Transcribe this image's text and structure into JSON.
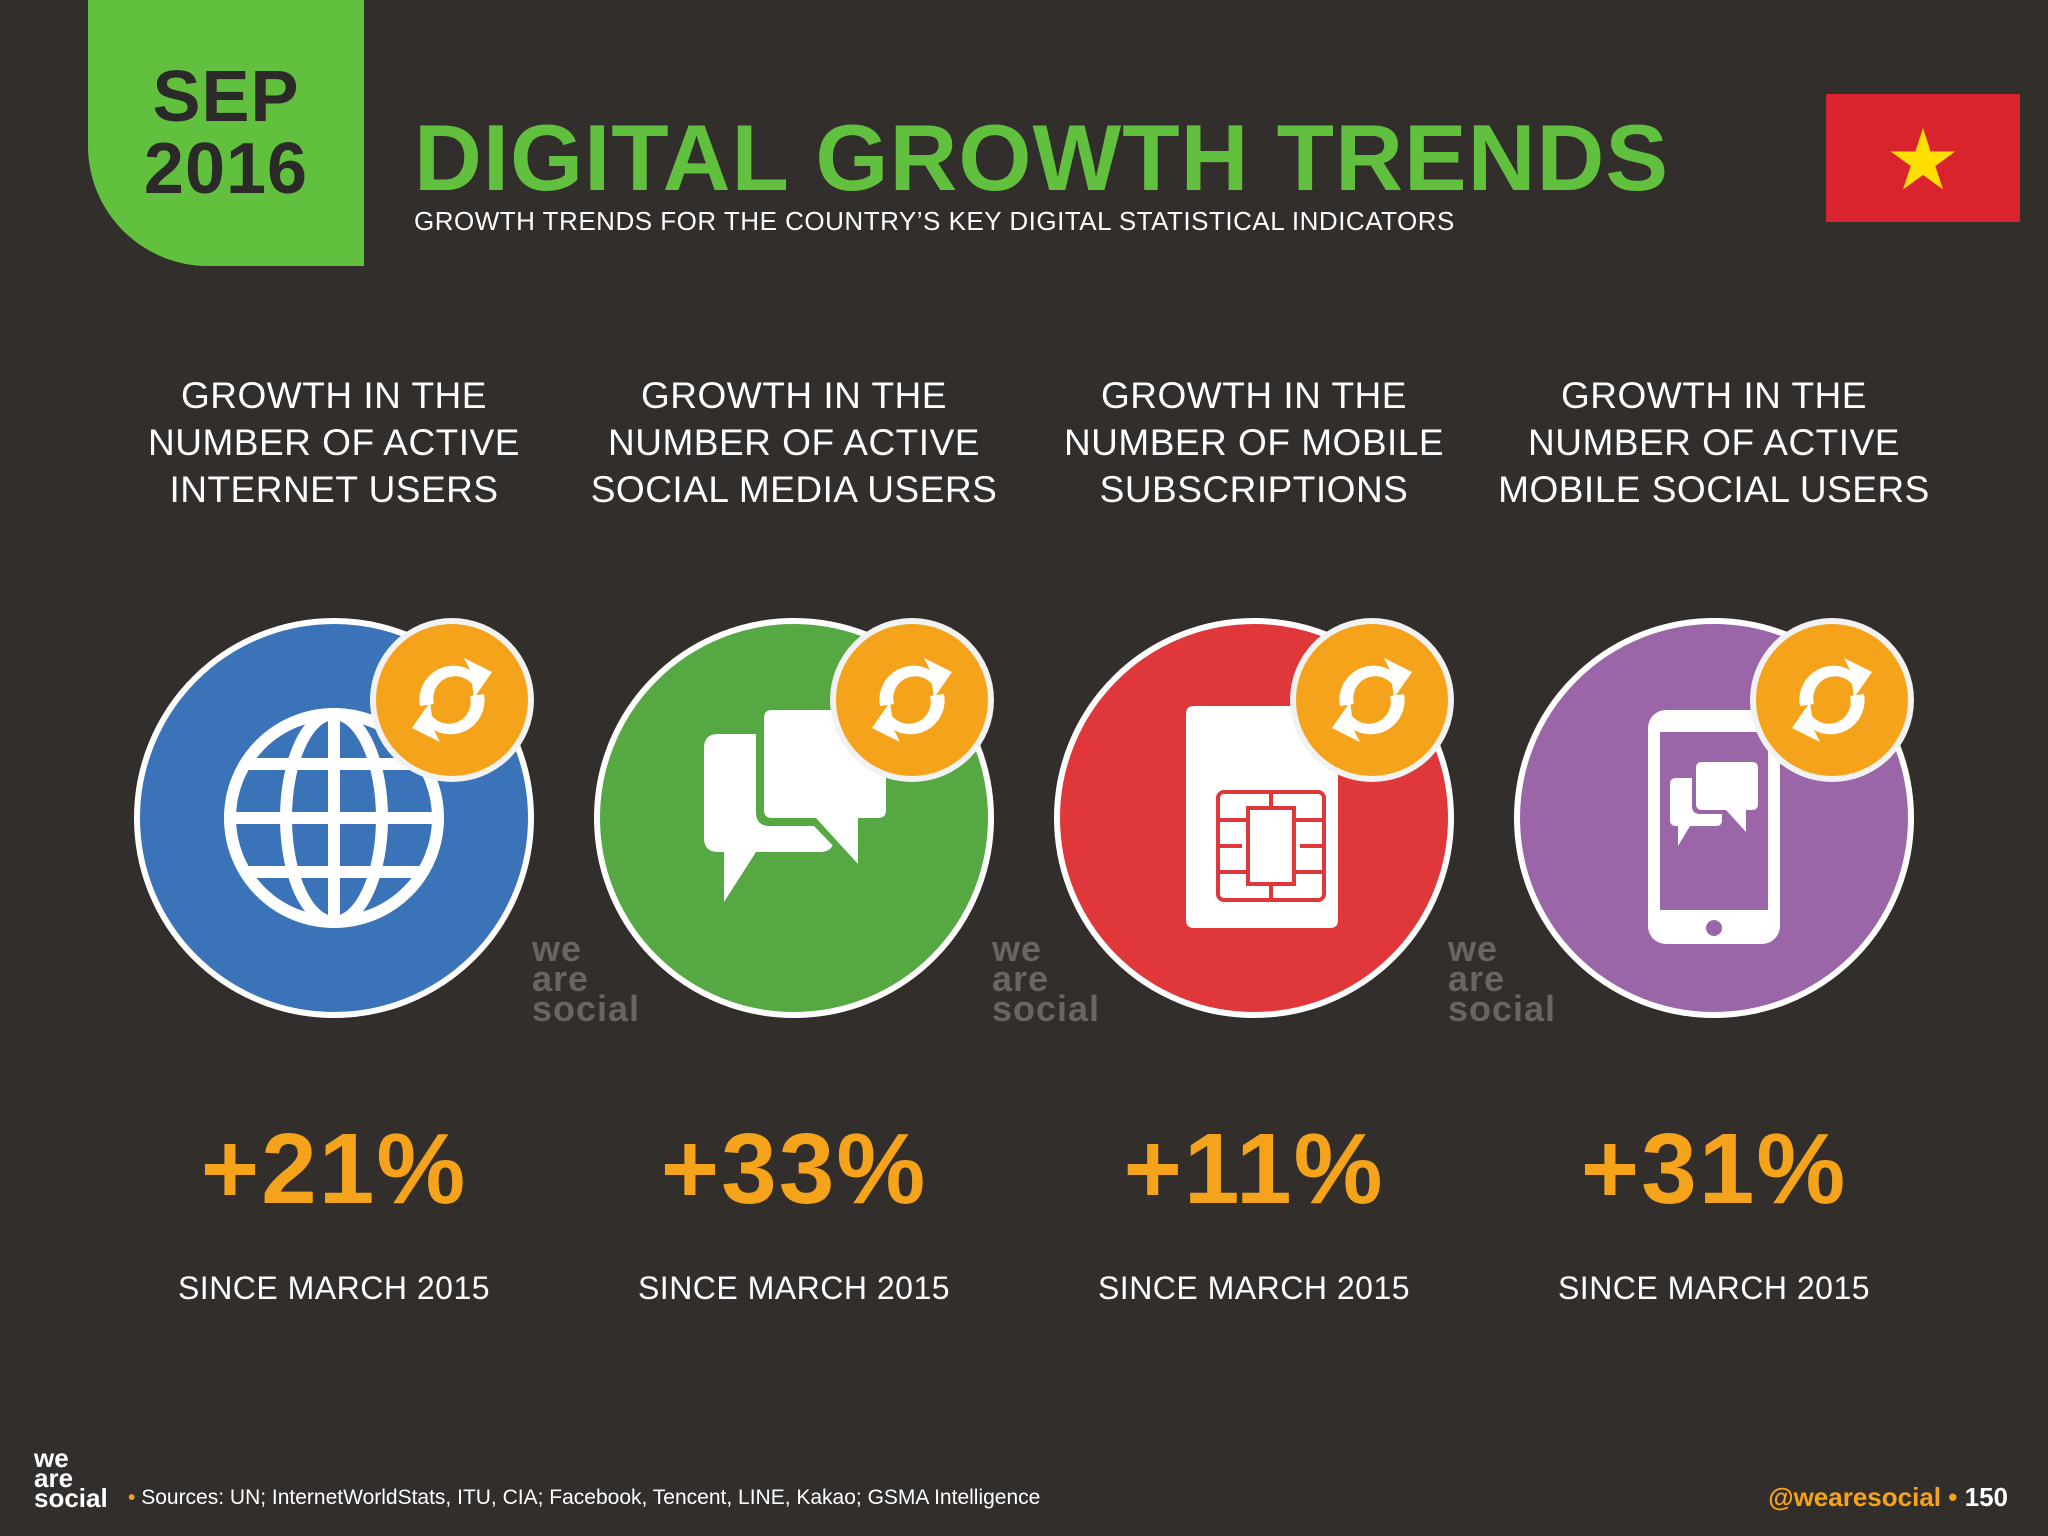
{
  "header": {
    "month": "SEP",
    "year": "2016",
    "title": "DIGITAL GROWTH TRENDS",
    "subtitle": "GROWTH TRENDS FOR THE COUNTRY’S KEY DIGITAL STATISTICAL INDICATORS",
    "flag": "vietnam-flag"
  },
  "cards": [
    {
      "heading": [
        "GROWTH IN THE",
        "NUMBER OF ACTIVE",
        "INTERNET USERS"
      ],
      "icon": "globe-icon",
      "color": "#3b73b9",
      "value": "+21%",
      "since": "SINCE MARCH 2015"
    },
    {
      "heading": [
        "GROWTH IN THE",
        "NUMBER OF ACTIVE",
        "SOCIAL MEDIA USERS"
      ],
      "icon": "chat-bubbles-icon",
      "color": "#55a842",
      "value": "+33%",
      "since": "SINCE MARCH 2015"
    },
    {
      "heading": [
        "GROWTH IN THE",
        "NUMBER OF MOBILE",
        "SUBSCRIPTIONS"
      ],
      "icon": "sim-card-icon",
      "color": "#e0373a",
      "value": "+11%",
      "since": "SINCE MARCH 2015"
    },
    {
      "heading": [
        "GROWTH IN THE",
        "NUMBER OF ACTIVE",
        "MOBILE SOCIAL USERS"
      ],
      "icon": "mobile-chat-icon",
      "color": "#9a66a8",
      "value": "+31%",
      "since": "SINCE MARCH 2015"
    }
  ],
  "watermark": [
    "we",
    "are",
    "social"
  ],
  "footer": {
    "logo": [
      "we",
      "are",
      "social"
    ],
    "bullet": "•",
    "sources": "Sources: UN; InternetWorldStats, ITU, CIA; Facebook, Tencent, LINE, Kakao; GSMA Intelligence",
    "handle": "@wearesocial",
    "page": "150"
  },
  "colors": {
    "background": "#322e2c",
    "accent_green": "#62c03f",
    "accent_orange": "#f5a31b"
  }
}
